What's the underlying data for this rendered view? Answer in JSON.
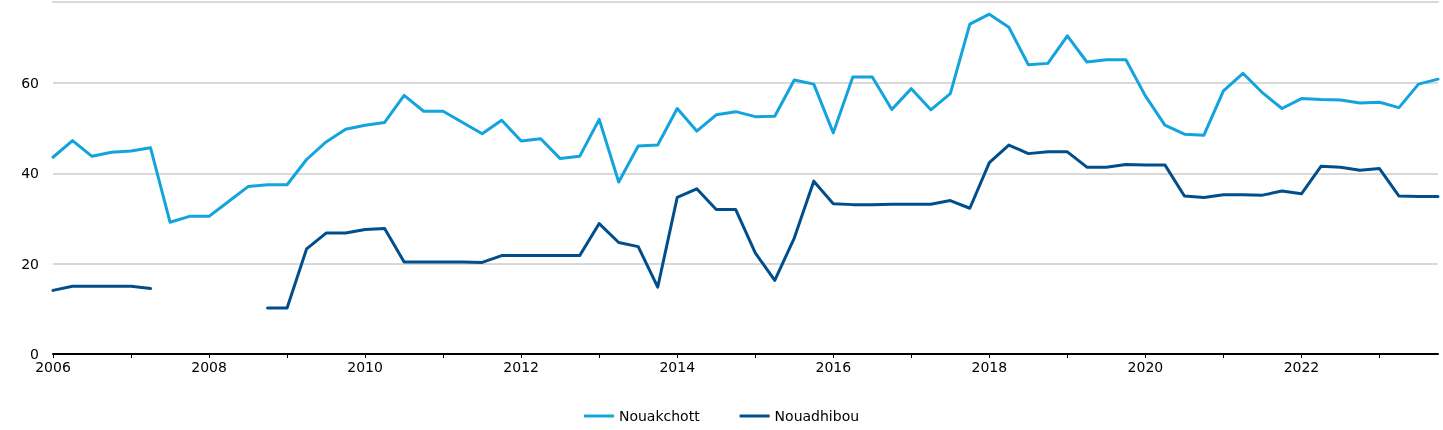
{
  "chart_data": {
    "type": "line",
    "x": [
      2006,
      2006.25,
      2006.5,
      2006.75,
      2007,
      2007.25,
      2007.5,
      2007.75,
      2008,
      2008.25,
      2008.5,
      2008.75,
      2009,
      2009.25,
      2009.5,
      2009.75,
      2010,
      2010.25,
      2010.5,
      2010.75,
      2011,
      2011.25,
      2011.5,
      2011.75,
      2012,
      2012.25,
      2012.5,
      2012.75,
      2013,
      2013.25,
      2013.5,
      2013.75,
      2014,
      2014.25,
      2014.5,
      2014.75,
      2015,
      2015.25,
      2015.5,
      2015.75,
      2016,
      2016.25,
      2016.5,
      2016.75,
      2017,
      2017.25,
      2017.5,
      2017.75,
      2018,
      2018.25,
      2018.5,
      2018.75,
      2019,
      2019.25,
      2019.5,
      2019.75,
      2020,
      2020.25,
      2020.5,
      2020.75,
      2021,
      2021.25,
      2021.5,
      2021.75,
      2022,
      2022.25,
      2022.5,
      2022.75,
      2023,
      2023.25,
      2023.5,
      2023.75
    ],
    "series": [
      {
        "name": "Nouakchott",
        "color": "#13a3dd",
        "values": [
          43.6,
          47.3,
          43.8,
          44.7,
          45,
          45.7,
          29.2,
          30.5,
          30.5,
          33.8,
          37.1,
          37.5,
          37.5,
          43.1,
          47,
          49.8,
          50.7,
          51.3,
          57.3,
          53.8,
          53.8,
          51.3,
          48.8,
          51.8,
          47.2,
          47.7,
          43.3,
          43.8,
          52,
          38.1,
          46.1,
          46.3,
          54.4,
          49.4,
          53,
          53.7,
          52.6,
          52.7,
          60.7,
          59.8,
          49,
          61.4,
          61.4,
          54.2,
          58.8,
          54.1,
          57.7,
          73.1,
          75.3,
          72.4,
          64.1,
          64.4,
          70.5,
          64.7,
          65.2,
          65.2,
          57.2,
          50.7,
          48.7,
          48.5,
          58.3,
          62.2,
          57.9,
          54.4,
          56.6,
          56.4,
          56.3,
          55.6,
          55.8,
          54.6,
          59.8,
          60.9
        ]
      },
      {
        "name": "Nouadhibou",
        "color": "#004f8c",
        "values": [
          14.1,
          15,
          15,
          15,
          15,
          14.5,
          null,
          null,
          null,
          null,
          null,
          10.2,
          10.2,
          23.3,
          26.8,
          26.8,
          27.6,
          27.8,
          20.4,
          20.4,
          20.4,
          20.4,
          20.3,
          21.8,
          21.8,
          21.8,
          21.8,
          21.8,
          28.9,
          24.7,
          23.8,
          14.8,
          34.7,
          36.6,
          32,
          32,
          22.4,
          16.3,
          25.7,
          38.3,
          33.3,
          33.1,
          33.1,
          33.2,
          33.2,
          33.2,
          34,
          32.3,
          42.4,
          46.3,
          44.4,
          44.8,
          44.8,
          41.4,
          41.4,
          42,
          41.9,
          41.9,
          35,
          34.7,
          35.3,
          35.3,
          35.2,
          36.1,
          35.5,
          41.6,
          41.4,
          40.7,
          41.1,
          35,
          34.9,
          34.9
        ]
      }
    ],
    "xlim": [
      2006,
      2023.75
    ],
    "xticks": [
      2006,
      {
        "value": 2007,
        "label": null
      },
      2008,
      {
        "value": 2009,
        "label": null
      },
      2010,
      {
        "value": 2011,
        "label": null
      },
      2012,
      {
        "value": 2013,
        "label": null
      },
      2014,
      {
        "value": 2015,
        "label": null
      },
      2016,
      {
        "value": 2017,
        "label": null
      },
      2018,
      {
        "value": 2019,
        "label": null
      },
      2020,
      {
        "value": 2021,
        "label": null
      },
      2022,
      {
        "value": 2023,
        "label": null
      }
    ],
    "ylim": [
      0,
      78
    ],
    "yticks": [
      0,
      20,
      40,
      60
    ],
    "grid": "y",
    "legend": "bottom",
    "marker": "none",
    "line_style": "solid"
  }
}
